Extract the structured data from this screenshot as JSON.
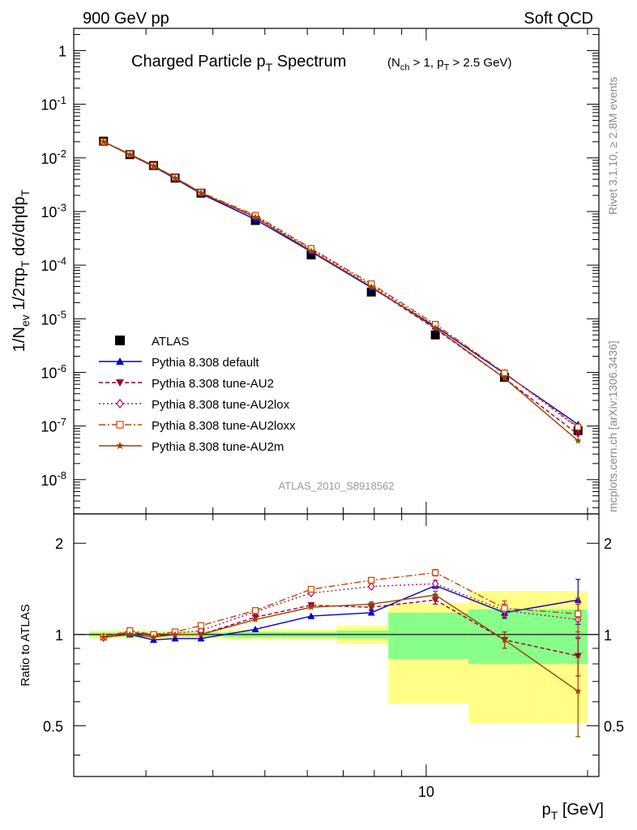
{
  "header": {
    "left_label": "900 GeV pp",
    "right_label": "Soft QCD"
  },
  "side": {
    "rivet": "Rivet 3.1.10, ≥ 2.8M events",
    "mcplots": "mcplots.cern.ch [arXiv:1306.3436]"
  },
  "chart_data": [
    {
      "type": "line",
      "panel": "main",
      "title": "Charged Particle p_T Spectrum",
      "title_note": "(N_ch > 1, p_T > 2.5 GeV)",
      "ylabel": "1/N_ev 1/2πp_T dσ/dηdp_T",
      "xlabel": "p_T [GeV]",
      "x_scale": "log",
      "y_scale": "log",
      "xlim": [
        2.2,
        21
      ],
      "ylim": [
        2.3e-09,
        2.6
      ],
      "y_tick_labels": [
        "10^-8",
        "10^-7",
        "10^-6",
        "10^-5",
        "10^-4",
        "10^-3",
        "10^-2",
        "10^-1",
        "1"
      ],
      "x_tick_labels": [
        "10"
      ],
      "analysis_label": "ATLAS_2010_S8918562",
      "legend_position": "bottom-left",
      "x": [
        2.5,
        2.8,
        3.1,
        3.4,
        3.8,
        4.8,
        6.1,
        7.9,
        10.4,
        14.0,
        19.2
      ],
      "series": [
        {
          "name": "ATLAS",
          "color": "#000000",
          "marker": "square",
          "dash": "none",
          "values": [
            0.0205,
            0.0115,
            0.0072,
            0.0042,
            0.0022,
            0.00068,
            0.000155,
            3.15e-05,
            5e-06,
            8.1e-07,
            8.2e-08
          ]
        },
        {
          "name": "Pythia 8.308 default",
          "color": "#0000cc",
          "marker": "triangle-up",
          "dash": "none",
          "values": [
            0.0201,
            0.0114,
            0.0069,
            0.0041,
            0.00215,
            0.00071,
            0.000178,
            3.8e-05,
            7.2e-06,
            9.5e-07,
            1.07e-07
          ]
        },
        {
          "name": "Pythia 8.308 tune-AU2",
          "color": "#990033",
          "marker": "triangle-down",
          "dash": "5,3",
          "values": [
            0.02,
            0.0117,
            0.0071,
            0.0043,
            0.0022,
            0.00078,
            0.000185,
            3.9e-05,
            6.5e-06,
            7.8e-07,
            7e-08
          ]
        },
        {
          "name": "Pythia 8.308 tune-AU2lox",
          "color": "#aa1166",
          "marker": "diamond-open",
          "dash": "2,3",
          "values": [
            0.0201,
            0.0117,
            0.0071,
            0.0043,
            0.00225,
            0.00082,
            0.000198,
            4.2e-05,
            7.3e-06,
            9.7e-07,
            9.2e-08
          ]
        },
        {
          "name": "Pythia 8.308 tune-AU2loxx",
          "color": "#cc4400",
          "marker": "square-open",
          "dash": "8,3,2,3",
          "values": [
            0.0201,
            0.0118,
            0.0072,
            0.0043,
            0.00228,
            0.00085,
            0.000205,
            4.5e-05,
            7.9e-06,
            9.8e-07,
            9.6e-08
          ]
        },
        {
          "name": "Pythia 8.308 tune-AU2m",
          "color": "#994400",
          "marker": "star",
          "dash": "none",
          "values": [
            0.0201,
            0.0115,
            0.0071,
            0.0042,
            0.00222,
            0.00078,
            0.000183,
            3.95e-05,
            6.8e-06,
            7.8e-07,
            5.3e-08
          ]
        }
      ]
    },
    {
      "type": "line",
      "panel": "ratio",
      "ylabel": "Ratio to ATLAS",
      "x_scale": "log",
      "xlim": [
        2.2,
        21
      ],
      "ylim": [
        0.34,
        2.5
      ],
      "y_tick_labels": [
        "0.5",
        "1",
        "2"
      ],
      "x": [
        2.5,
        2.8,
        3.1,
        3.4,
        3.8,
        4.8,
        6.1,
        7.9,
        10.4,
        14.0,
        19.2
      ],
      "bands": [
        {
          "x0": 2.35,
          "x1": 2.65,
          "yellow": [
            0.97,
            1.03
          ],
          "green": [
            0.985,
            1.015
          ]
        },
        {
          "x0": 2.65,
          "x1": 2.95,
          "yellow": [
            0.97,
            1.03
          ],
          "green": [
            0.985,
            1.015
          ]
        },
        {
          "x0": 2.95,
          "x1": 3.25,
          "yellow": [
            0.97,
            1.03
          ],
          "green": [
            0.985,
            1.015
          ]
        },
        {
          "x0": 3.25,
          "x1": 3.6,
          "yellow": [
            0.97,
            1.03
          ],
          "green": [
            0.985,
            1.015
          ]
        },
        {
          "x0": 3.6,
          "x1": 4.2,
          "yellow": [
            0.97,
            1.03
          ],
          "green": [
            0.985,
            1.015
          ]
        },
        {
          "x0": 4.2,
          "x1": 5.5,
          "yellow": [
            0.96,
            1.04
          ],
          "green": [
            0.98,
            1.02
          ]
        },
        {
          "x0": 5.5,
          "x1": 6.8,
          "yellow": [
            0.96,
            1.04
          ],
          "green": [
            0.98,
            1.02
          ]
        },
        {
          "x0": 6.8,
          "x1": 8.5,
          "yellow": [
            0.93,
            1.07
          ],
          "green": [
            0.97,
            1.03
          ]
        },
        {
          "x0": 8.5,
          "x1": 12.0,
          "yellow": [
            0.59,
            1.27
          ],
          "green": [
            0.83,
            1.18
          ]
        },
        {
          "x0": 12.0,
          "x1": 16.0,
          "yellow": [
            0.51,
            1.39
          ],
          "green": [
            0.8,
            1.21
          ]
        },
        {
          "x0": 16.0,
          "x1": 20.0,
          "yellow": [
            0.51,
            1.39
          ],
          "green": [
            0.8,
            1.21
          ]
        }
      ],
      "series": [
        {
          "name": "Pythia 8.308 default",
          "color": "#0000cc",
          "values": [
            0.98,
            1.0,
            0.96,
            0.97,
            0.97,
            1.04,
            1.15,
            1.18,
            1.45,
            1.18,
            1.3
          ],
          "errors": [
            0.01,
            0.01,
            0.01,
            0.01,
            0.01,
            0.01,
            0.01,
            0.02,
            0.03,
            0.05,
            0.22
          ]
        },
        {
          "name": "Pythia 8.308 tune-AU2",
          "color": "#990033",
          "values": [
            0.97,
            1.02,
            0.99,
            1.0,
            1.0,
            1.14,
            1.25,
            1.23,
            1.3,
            0.96,
            0.85
          ],
          "errors": [
            0.01,
            0.01,
            0.01,
            0.01,
            0.01,
            0.01,
            0.01,
            0.02,
            0.04,
            0.06,
            0.12
          ]
        },
        {
          "name": "Pythia 8.308 tune-AU2lox",
          "color": "#aa1166",
          "values": [
            0.98,
            1.02,
            0.99,
            1.01,
            1.03,
            1.19,
            1.37,
            1.44,
            1.47,
            1.2,
            1.12
          ],
          "errors": [
            0.01,
            0.01,
            0.01,
            0.01,
            0.01,
            0.01,
            0.01,
            0.02,
            0.04,
            0.06,
            0.14
          ]
        },
        {
          "name": "Pythia 8.308 tune-AU2loxx",
          "color": "#cc4400",
          "values": [
            0.98,
            1.03,
            1.0,
            1.02,
            1.07,
            1.2,
            1.41,
            1.51,
            1.6,
            1.22,
            1.17
          ],
          "errors": [
            0.01,
            0.01,
            0.01,
            0.01,
            0.01,
            0.01,
            0.01,
            0.02,
            0.04,
            0.07,
            0.15
          ]
        },
        {
          "name": "Pythia 8.308 tune-AU2m",
          "color": "#994400",
          "values": [
            0.98,
            1.0,
            0.98,
            1.0,
            1.0,
            1.12,
            1.23,
            1.26,
            1.35,
            0.96,
            0.65
          ],
          "errors": [
            0.01,
            0.01,
            0.01,
            0.01,
            0.01,
            0.01,
            0.01,
            0.02,
            0.04,
            0.06,
            0.19
          ]
        }
      ]
    }
  ]
}
